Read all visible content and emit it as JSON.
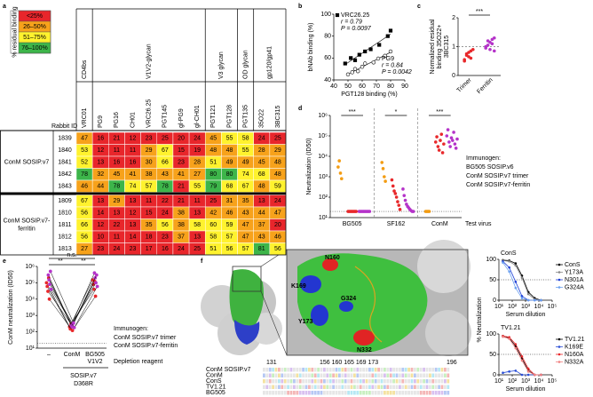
{
  "panel_labels": [
    "a",
    "b",
    "c",
    "d",
    "e",
    "f"
  ],
  "heatmap": {
    "legend_title": "% residual binding",
    "legend": [
      {
        "value": 25,
        "label": "<25%",
        "color": "#e8262b"
      },
      {
        "value": 50,
        "label": "26–50%",
        "color": "#f7a21b"
      },
      {
        "value": 75,
        "label": "51–75%",
        "color": "#fff22e"
      },
      {
        "value": 100,
        "label": "76–100%",
        "color": "#3db54a"
      }
    ],
    "groups": [
      {
        "label": "CD4bs",
        "columns": [
          "VRC01"
        ]
      },
      {
        "label": "V1V2-glycan",
        "columns": [
          "PG9",
          "PG16",
          "CH01",
          "VRC26.25",
          "PGT145",
          "gl-PG9",
          "gl-CH01"
        ]
      },
      {
        "label": "V3 glycan",
        "columns": [
          "PGT121",
          "PGT128"
        ]
      },
      {
        "label": "OD glycan",
        "columns": [
          "PGT135"
        ]
      },
      {
        "label": "gp120/gp41",
        "columns": [
          "35O22",
          "3BC315"
        ]
      }
    ],
    "row_header": "Rabbit ID",
    "row_groups": [
      {
        "label_lines": [
          "ConM SOSIP.v7"
        ],
        "rows": [
          {
            "id": "1839",
            "values": [
              47,
              16,
              21,
              12,
              23,
              25,
              20,
              24,
              45,
              55,
              58,
              24,
              25
            ]
          },
          {
            "id": "1840",
            "values": [
              53,
              12,
              11,
              11,
              29,
              67,
              15,
              19,
              48,
              48,
              55,
              28,
              29
            ]
          },
          {
            "id": "1841",
            "values": [
              52,
              13,
              16,
              16,
              30,
              66,
              23,
              28,
              51,
              49,
              49,
              45,
              48
            ]
          },
          {
            "id": "1842",
            "values": [
              78,
              32,
              45,
              41,
              38,
              43,
              41,
              27,
              80,
              80,
              74,
              68,
              48
            ]
          },
          {
            "id": "1843",
            "values": [
              46,
              44,
              78,
              74,
              57,
              78,
              21,
              55,
              79,
              68,
              67,
              48,
              59
            ]
          }
        ]
      },
      {
        "label_lines": [
          "ConM SOSIP.v7-",
          "ferritin"
        ],
        "rows": [
          {
            "id": "1809",
            "values": [
              67,
              13,
              29,
              13,
              11,
              22,
              21,
              11,
              25,
              31,
              35,
              13,
              24
            ]
          },
          {
            "id": "1810",
            "values": [
              56,
              14,
              13,
              12,
              15,
              24,
              38,
              13,
              42,
              46,
              43,
              44,
              47
            ]
          },
          {
            "id": "1811",
            "values": [
              66,
              12,
              22,
              13,
              35,
              56,
              38,
              58,
              60,
              59,
              47,
              37,
              20
            ]
          },
          {
            "id": "1812",
            "values": [
              56,
              10,
              11,
              14,
              18,
              23,
              37,
              13,
              58,
              57,
              47,
              43,
              46
            ]
          },
          {
            "id": "1813",
            "values": [
              27,
              23,
              24,
              23,
              17,
              16,
              24,
              25,
              51,
              56,
              57,
              81,
              56
            ]
          }
        ]
      }
    ]
  },
  "scatter": {
    "type": "scatter",
    "xlabel": "PGT128 binding (%)",
    "ylabel": "bNAb binding (%)",
    "xlim": [
      40,
      90
    ],
    "xticks": [
      40,
      50,
      60,
      70,
      80,
      90
    ],
    "ylim": [
      40,
      100
    ],
    "yticks": [
      40,
      60,
      80,
      100
    ],
    "series": [
      {
        "name": "VRC26.25",
        "marker": "filled-square",
        "color": "#000000",
        "legend_loc": "upper left",
        "stats": [
          "r = 0.79",
          "P = 0.0097"
        ],
        "x": [
          48,
          52,
          55,
          58,
          62,
          66,
          72,
          78,
          80
        ],
        "y": [
          55,
          60,
          58,
          63,
          66,
          68,
          72,
          80,
          85
        ]
      },
      {
        "name": "PG9",
        "marker": "open-circle",
        "color": "#000000",
        "legend_loc": "lower right",
        "stats": [
          "r = 0.84",
          "P = 0.0042"
        ],
        "x": [
          50,
          53,
          55,
          57,
          60,
          62,
          68,
          76,
          80
        ],
        "y": [
          45,
          47,
          50,
          48,
          52,
          55,
          56,
          62,
          66
        ]
      }
    ]
  },
  "dotplot_c": {
    "type": "dot",
    "ylabel_lines": [
      "Normalized residual",
      "binding 35O22+",
      "3BC315"
    ],
    "categories": [
      "Trimer",
      "Ferritin"
    ],
    "colors": [
      "#e8282b",
      "#b533c9"
    ],
    "values": [
      [
        0.5,
        0.7,
        0.8,
        0.6,
        0.9,
        0.55,
        0.75,
        0.65,
        0.85
      ],
      [
        1.0,
        1.2,
        0.9,
        1.1,
        1.3,
        0.95,
        1.05,
        1.15,
        1.25,
        0.85
      ]
    ],
    "ylim": [
      0,
      2
    ],
    "yticks": [
      0,
      1,
      2
    ],
    "reference": 1,
    "significance": "***"
  },
  "dotplot_d": {
    "type": "dot",
    "log_scale": true,
    "ylabel": "Neutralization (ID50)",
    "xlabel": "Test virus",
    "categories": [
      "BG505",
      "SF162",
      "ConM"
    ],
    "ylim": [
      10,
      1000000
    ],
    "yticks": [
      {
        "value": 10,
        "label": "10¹"
      },
      {
        "value": 100,
        "label": "10²"
      },
      {
        "value": 1000,
        "label": "10³"
      },
      {
        "value": 10000,
        "label": "10⁴"
      },
      {
        "value": 100000,
        "label": "10⁵"
      },
      {
        "value": 1000000,
        "label": "10⁶"
      }
    ],
    "cutoff": 20,
    "significance": [
      "***",
      "*",
      "***"
    ],
    "legend_title": "Immunogen:",
    "series": [
      {
        "name": "BG505 SOSIP.v6",
        "color": "#f39c12",
        "values": [
          [
            3000,
            6000,
            1500,
            800
          ],
          [
            5000,
            2500,
            1000,
            600
          ],
          [
            20,
            20,
            20,
            20
          ]
        ]
      },
      {
        "name": "ConM SOSIP.v7 trimer",
        "color": "#e8282b",
        "values": [
          [
            20,
            20,
            20,
            20,
            20,
            20,
            20,
            20
          ],
          [
            700,
            350,
            200,
            150,
            100,
            60,
            40,
            25
          ],
          [
            50000,
            90000,
            30000,
            20000,
            60000,
            120000,
            15000,
            40000
          ]
        ]
      },
      {
        "name": "ConM SOSIP.v7-ferritin",
        "color": "#b533c9",
        "values": [
          [
            20,
            20,
            20,
            20,
            20,
            20,
            20,
            20,
            20,
            20
          ],
          [
            250,
            120,
            70,
            45,
            35,
            30,
            25,
            22,
            20,
            20
          ],
          [
            100000,
            200000,
            50000,
            30000,
            80000,
            60000,
            150000,
            40000,
            25000,
            70000
          ]
        ]
      }
    ]
  },
  "paired_e": {
    "type": "line",
    "log_scale": true,
    "ylabel": "ConM neutralization (ID50)",
    "xlabel": "Depletion reagent",
    "categories": [
      [
        "–"
      ],
      [
        "ConM"
      ],
      [
        "BG505",
        "V1V2"
      ]
    ],
    "bracket_lines": [
      "SOSIP.v7",
      "D368R"
    ],
    "ylim": [
      10,
      1000000
    ],
    "yticks": [
      {
        "value": 10,
        "label": "10¹"
      },
      {
        "value": 100,
        "label": "10²"
      },
      {
        "value": 1000,
        "label": "10³"
      },
      {
        "value": 10000,
        "label": "10⁴"
      },
      {
        "value": 100000,
        "label": "10⁵"
      },
      {
        "value": 1000000,
        "label": "10⁶"
      }
    ],
    "cutoff": 20,
    "significance": [
      "n.s.",
      "**",
      "**"
    ],
    "legend_title": "Immunogen:",
    "series": [
      {
        "name": "ConM SOSIP.v7 trimer",
        "color": "#e8282b",
        "values": [
          [
            100000,
            200,
            150000
          ],
          [
            60000,
            150,
            80000
          ],
          [
            30000,
            300,
            40000
          ],
          [
            200000,
            250,
            120000
          ],
          [
            10000,
            120,
            15000
          ]
        ]
      },
      {
        "name": "ConM SOSIP.v7-ferritin",
        "color": "#b533c9",
        "values": [
          [
            300000,
            250,
            400000
          ],
          [
            150000,
            200,
            200000
          ],
          [
            80000,
            300,
            100000
          ],
          [
            500000,
            350,
            300000
          ],
          [
            40000,
            180,
            60000
          ]
        ]
      }
    ]
  },
  "structure": {
    "residues": [
      {
        "label": "N160",
        "color": "#e8282b"
      },
      {
        "label": "K169",
        "color": "#1f3fd6"
      },
      {
        "label": "Y173",
        "color": "#1f3fd6"
      },
      {
        "label": "G324",
        "color": "#ffffff"
      },
      {
        "label": "N332",
        "color": "#e8282b"
      }
    ],
    "alignment": {
      "positions": [
        "131",
        "156 160 165 169 173",
        "196"
      ],
      "names": [
        "ConM SOSIP.v7",
        "ConM",
        "ConS",
        "TV1.21",
        "BG505"
      ]
    }
  },
  "curves": {
    "type": "line",
    "log_scale_x": true,
    "ylabel": "% Neutralization",
    "xlabel": "Serum dilution",
    "xlim": [
      10,
      100000
    ],
    "xticks": [
      {
        "value": 10,
        "label": "10¹"
      },
      {
        "value": 100,
        "label": "10²"
      },
      {
        "value": 1000,
        "label": "10³"
      },
      {
        "value": 10000,
        "label": "10⁴"
      },
      {
        "value": 100000,
        "label": "10⁵"
      }
    ],
    "ylim": [
      0,
      100
    ],
    "yticks": [
      0,
      50,
      100
    ],
    "reference": 50,
    "x": [
      20,
      60,
      180,
      540,
      1620,
      4860,
      14580
    ],
    "panels": [
      {
        "title": "ConS",
        "series": [
          {
            "name": "ConS",
            "color": "#000000",
            "values": [
              98,
              97,
              90,
              60,
              20,
              5,
              0
            ]
          },
          {
            "name": "Y173A",
            "color": "#888888",
            "values": [
              97,
              95,
              85,
              55,
              15,
              2,
              0
            ]
          },
          {
            "name": "N301A",
            "color": "#1f3fd6",
            "values": [
              95,
              80,
              45,
              10,
              0,
              0,
              0
            ]
          },
          {
            "name": "G324A",
            "color": "#6aa0f0",
            "values": [
              92,
              70,
              30,
              5,
              0,
              0,
              0
            ]
          }
        ]
      },
      {
        "title": "TV1.21",
        "series": [
          {
            "name": "TV1.21",
            "color": "#000000",
            "values": [
              95,
              90,
              70,
              40,
              10,
              0,
              0
            ]
          },
          {
            "name": "K169E",
            "color": "#2b4fd6",
            "values": [
              5,
              8,
              10,
              0,
              0,
              0,
              0
            ]
          },
          {
            "name": "N160A",
            "color": "#e8282b",
            "values": [
              95,
              92,
              75,
              45,
              15,
              0,
              0
            ]
          },
          {
            "name": "N332A",
            "color": "#f08080",
            "values": [
              93,
              88,
              65,
              35,
              8,
              0,
              0
            ]
          }
        ]
      }
    ]
  }
}
